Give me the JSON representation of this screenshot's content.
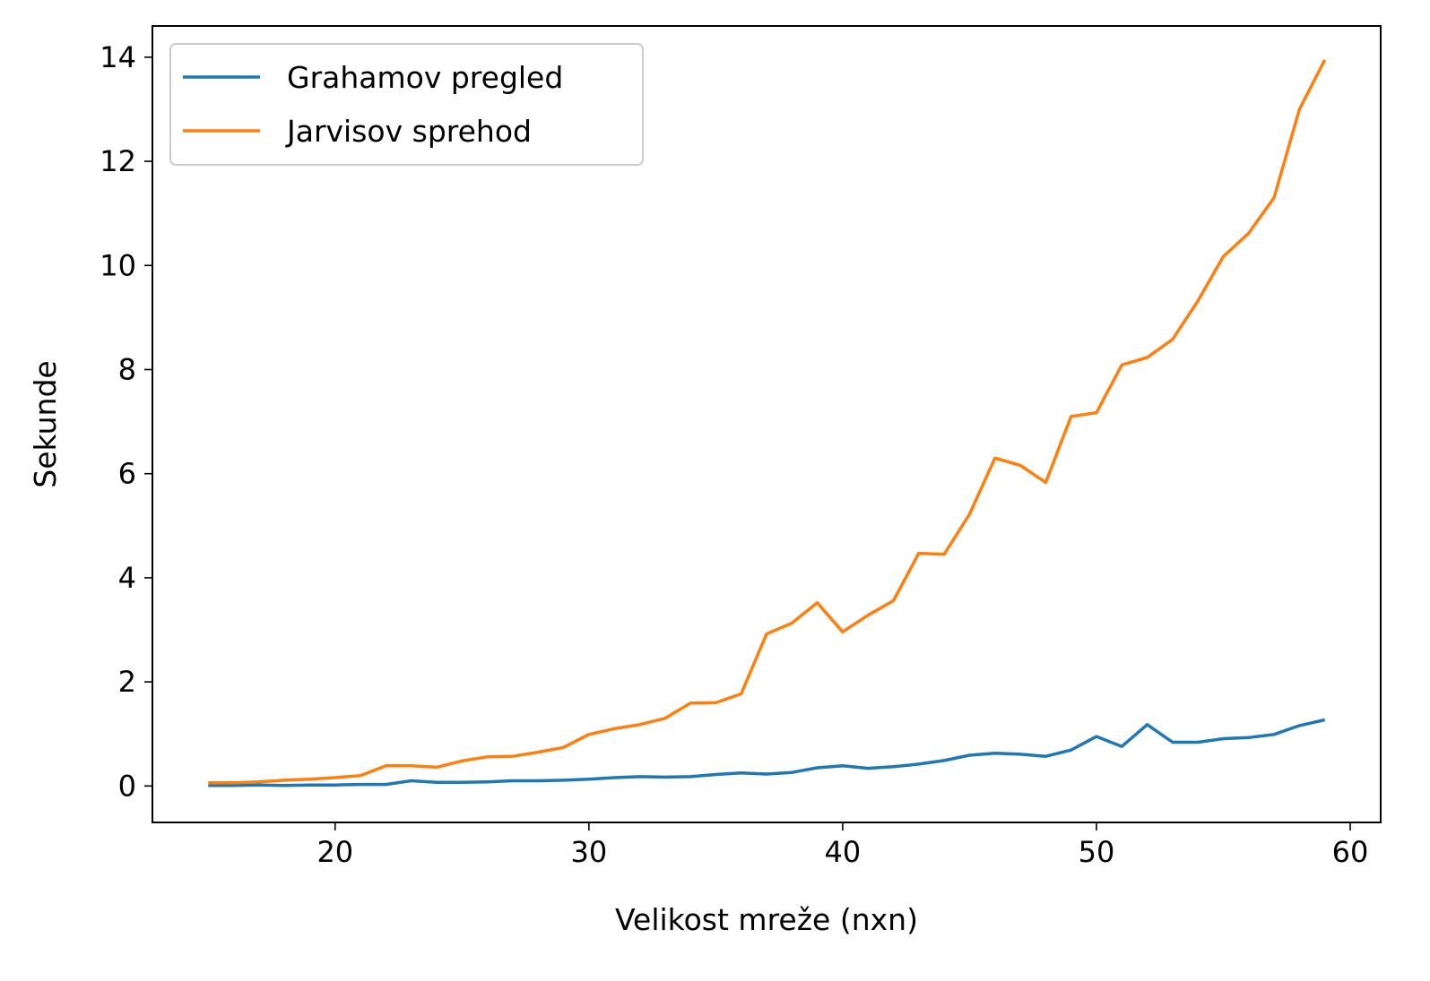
{
  "chart_data": {
    "type": "line",
    "title": "",
    "xlabel": "Velikost mreže (nxn)",
    "ylabel": "Sekunde",
    "xlim": [
      12.8,
      61.2
    ],
    "ylim": [
      -0.7,
      14.6
    ],
    "xticks": [
      20,
      30,
      40,
      50,
      60
    ],
    "yticks": [
      0,
      2,
      4,
      6,
      8,
      10,
      12,
      14
    ],
    "grid": false,
    "legend_position": "top-left",
    "x": [
      15,
      16,
      17,
      18,
      19,
      20,
      21,
      22,
      23,
      24,
      25,
      26,
      27,
      28,
      29,
      30,
      31,
      32,
      33,
      34,
      35,
      36,
      37,
      38,
      39,
      40,
      41,
      42,
      43,
      44,
      45,
      46,
      47,
      48,
      49,
      50,
      51,
      52,
      53,
      54,
      55,
      56,
      57,
      58,
      59
    ],
    "series": [
      {
        "name": "Grahamov pregled",
        "color": "#1f77b4",
        "values": [
          0.01,
          0.01,
          0.02,
          0.01,
          0.02,
          0.02,
          0.03,
          0.03,
          0.1,
          0.07,
          0.07,
          0.08,
          0.1,
          0.1,
          0.11,
          0.13,
          0.16,
          0.18,
          0.17,
          0.18,
          0.22,
          0.25,
          0.23,
          0.26,
          0.35,
          0.39,
          0.34,
          0.37,
          0.42,
          0.49,
          0.59,
          0.63,
          0.61,
          0.57,
          0.69,
          0.95,
          0.76,
          1.18,
          0.84,
          0.84,
          0.91,
          0.93,
          0.99,
          1.16,
          1.27
        ]
      },
      {
        "name": "Jarvisov sprehod",
        "color": "#ff7f0e",
        "values": [
          0.06,
          0.06,
          0.08,
          0.11,
          0.13,
          0.16,
          0.2,
          0.39,
          0.39,
          0.36,
          0.48,
          0.56,
          0.57,
          0.65,
          0.74,
          0.99,
          1.1,
          1.18,
          1.3,
          1.59,
          1.6,
          1.77,
          2.92,
          3.13,
          3.52,
          2.96,
          3.28,
          3.56,
          4.47,
          4.45,
          5.22,
          6.3,
          6.16,
          5.83,
          7.1,
          7.17,
          8.09,
          8.23,
          8.58,
          9.32,
          10.17,
          10.62,
          11.3,
          13.0,
          13.95
        ]
      }
    ]
  }
}
